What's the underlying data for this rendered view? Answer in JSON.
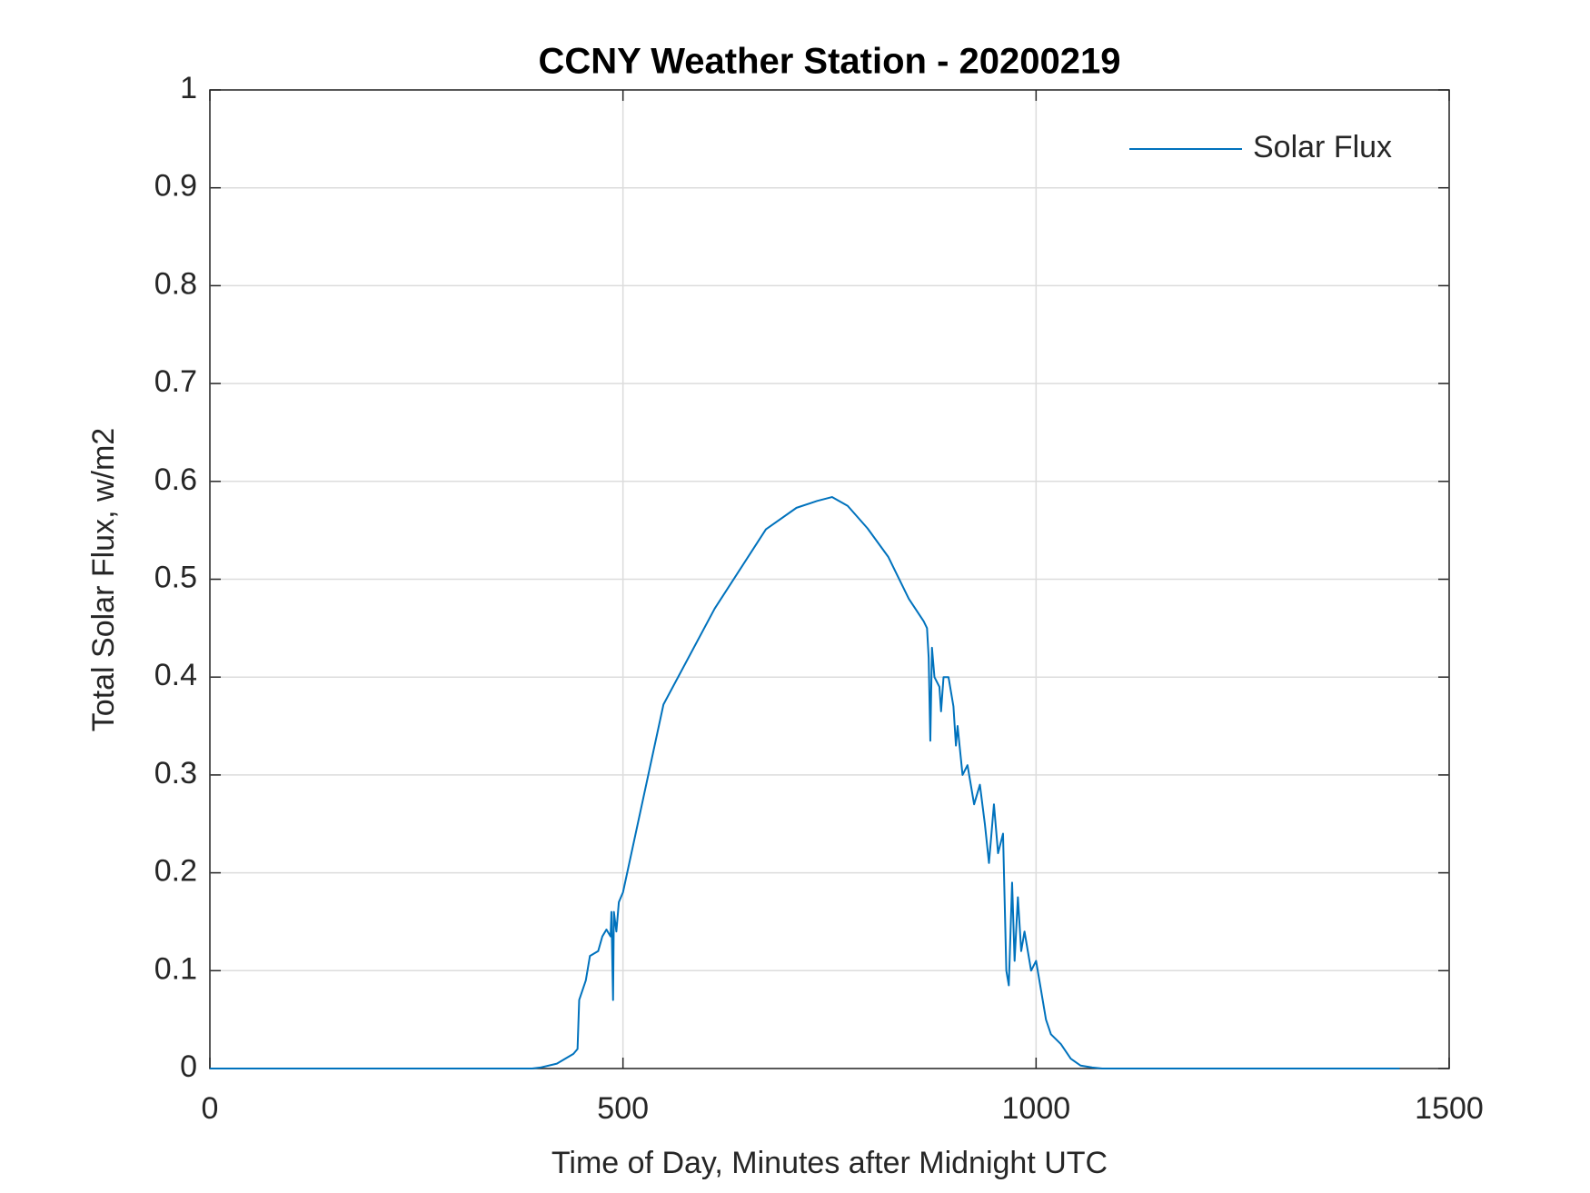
{
  "chart_data": {
    "type": "line",
    "title": "CCNY Weather Station - 20200219",
    "x_label": "Time of Day, Minutes after Midnight UTC",
    "y_label": "Total Solar Flux, w/m2",
    "x": [
      0,
      390,
      400,
      420,
      440,
      445,
      447,
      455,
      460,
      470,
      475,
      480,
      485,
      486,
      488,
      489,
      492,
      495,
      500,
      549,
      611,
      673,
      710,
      735,
      753,
      772,
      796,
      821,
      846,
      864,
      868,
      870,
      872,
      874,
      877,
      883,
      885,
      888,
      894,
      900,
      903,
      905,
      911,
      917,
      925,
      932,
      938,
      943,
      949,
      954,
      960,
      964,
      967,
      971,
      974,
      978,
      982,
      986,
      994,
      1000,
      1006,
      1012,
      1018,
      1030,
      1042,
      1054,
      1068,
      1080,
      1440
    ],
    "series": [
      {
        "name": "Solar Flux",
        "color": "#0072bd",
        "values": [
          0,
          0,
          0.001,
          0.005,
          0.015,
          0.02,
          0.07,
          0.09,
          0.115,
          0.12,
          0.135,
          0.142,
          0.135,
          0.16,
          0.07,
          0.16,
          0.14,
          0.17,
          0.18,
          0.372,
          0.47,
          0.551,
          0.573,
          0.58,
          0.584,
          0.575,
          0.552,
          0.523,
          0.48,
          0.457,
          0.45,
          0.42,
          0.335,
          0.43,
          0.4,
          0.39,
          0.365,
          0.4,
          0.4,
          0.37,
          0.33,
          0.35,
          0.3,
          0.31,
          0.27,
          0.29,
          0.25,
          0.21,
          0.27,
          0.22,
          0.24,
          0.1,
          0.085,
          0.19,
          0.11,
          0.175,
          0.12,
          0.14,
          0.1,
          0.11,
          0.08,
          0.05,
          0.035,
          0.025,
          0.01,
          0.003,
          0.001,
          0,
          0
        ]
      }
    ],
    "xlim": [
      0,
      1500
    ],
    "xticks": [
      0,
      500,
      1000,
      1500
    ],
    "ylim": [
      0,
      1
    ],
    "yticks": [
      0,
      0.1,
      0.2,
      0.3,
      0.4,
      0.5,
      0.6,
      0.7,
      0.8,
      0.9,
      1
    ],
    "grid": true,
    "legend": "upper right"
  }
}
